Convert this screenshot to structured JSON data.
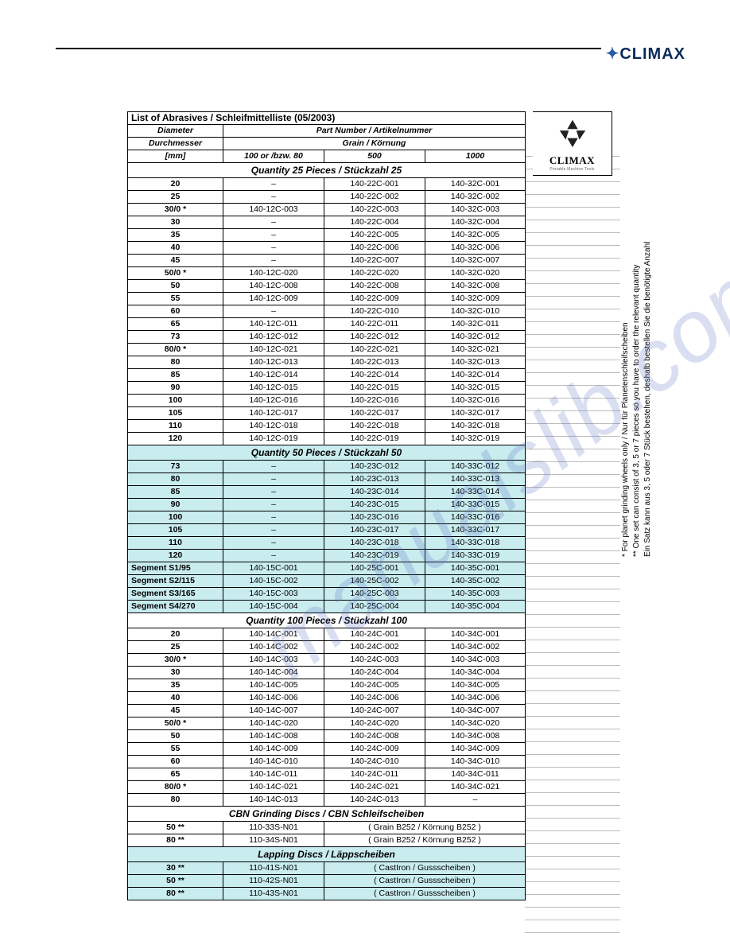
{
  "brand": "CLIMAX",
  "watermark": "manualslib.com",
  "title": "List of Abrasives  / Schleifmittelliste  (05/2003)",
  "header": {
    "diameter_en": "Diameter",
    "partnum": "Part Number / Artikelnummer",
    "diameter_de": "Durchmesser",
    "grain": "Grain / Körnung",
    "mm": "[mm]",
    "col1": "100 or /bzw. 80",
    "col2": "500",
    "col3": "1000"
  },
  "logo": {
    "text": "CLIMAX",
    "sub": "Portable Machine Tools"
  },
  "sections": [
    {
      "title": "Quantity 25 Pieces /   Stückzahl 25",
      "bg": false,
      "rows": [
        {
          "d": "20",
          "c1": "–",
          "c2": "140-22C-001",
          "c3": "140-32C-001"
        },
        {
          "d": "25",
          "c1": "–",
          "c2": "140-22C-002",
          "c3": "140-32C-002"
        },
        {
          "d": "30/0 *",
          "c1": "140-12C-003",
          "c2": "140-22C-003",
          "c3": "140-32C-003"
        },
        {
          "d": "30",
          "c1": "–",
          "c2": "140-22C-004",
          "c3": "140-32C-004"
        },
        {
          "d": "35",
          "c1": "–",
          "c2": "140-22C-005",
          "c3": "140-32C-005"
        },
        {
          "d": "40",
          "c1": "–",
          "c2": "140-22C-006",
          "c3": "140-32C-006"
        },
        {
          "d": "45",
          "c1": "–",
          "c2": "140-22C-007",
          "c3": "140-32C-007"
        },
        {
          "d": "50/0 *",
          "c1": "140-12C-020",
          "c2": "140-22C-020",
          "c3": "140-32C-020"
        },
        {
          "d": "50",
          "c1": "140-12C-008",
          "c2": "140-22C-008",
          "c3": "140-32C-008"
        },
        {
          "d": "55",
          "c1": "140-12C-009",
          "c2": "140-22C-009",
          "c3": "140-32C-009"
        },
        {
          "d": "60",
          "c1": "–",
          "c2": "140-22C-010",
          "c3": "140-32C-010"
        },
        {
          "d": "65",
          "c1": "140-12C-011",
          "c2": "140-22C-011",
          "c3": "140-32C-011"
        },
        {
          "d": "73",
          "c1": "140-12C-012",
          "c2": "140-22C-012",
          "c3": "140-32C-012"
        },
        {
          "d": "80/0 *",
          "c1": "140-12C-021",
          "c2": "140-22C-021",
          "c3": "140-32C-021"
        },
        {
          "d": "80",
          "c1": "140-12C-013",
          "c2": "140-22C-013",
          "c3": "140-32C-013"
        },
        {
          "d": "85",
          "c1": "140-12C-014",
          "c2": "140-22C-014",
          "c3": "140-32C-014"
        },
        {
          "d": "90",
          "c1": "140-12C-015",
          "c2": "140-22C-015",
          "c3": "140-32C-015"
        },
        {
          "d": "100",
          "c1": "140-12C-016",
          "c2": "140-22C-016",
          "c3": "140-32C-016"
        },
        {
          "d": "105",
          "c1": "140-12C-017",
          "c2": "140-22C-017",
          "c3": "140-32C-017"
        },
        {
          "d": "110",
          "c1": "140-12C-018",
          "c2": "140-22C-018",
          "c3": "140-32C-018"
        },
        {
          "d": "120",
          "c1": "140-12C-019",
          "c2": "140-22C-019",
          "c3": "140-32C-019"
        }
      ]
    },
    {
      "title": "Quantity 50 Pieces /   Stückzahl 50",
      "bg": true,
      "rows": [
        {
          "d": "73",
          "c1": "–",
          "c2": "140-23C-012",
          "c3": "140-33C-012"
        },
        {
          "d": "80",
          "c1": "–",
          "c2": "140-23C-013",
          "c3": "140-33C-013"
        },
        {
          "d": "85",
          "c1": "–",
          "c2": "140-23C-014",
          "c3": "140-33C-014"
        },
        {
          "d": "90",
          "c1": "–",
          "c2": "140-23C-015",
          "c3": "140-33C-015"
        },
        {
          "d": "100",
          "c1": "–",
          "c2": "140-23C-016",
          "c3": "140-33C-016"
        },
        {
          "d": "105",
          "c1": "–",
          "c2": "140-23C-017",
          "c3": "140-33C-017"
        },
        {
          "d": "110",
          "c1": "–",
          "c2": "140-23C-018",
          "c3": "140-33C-018"
        },
        {
          "d": "120",
          "c1": "–",
          "c2": "140-23C-019",
          "c3": "140-33C-019"
        },
        {
          "d": "Segment S1/95",
          "left": true,
          "c1": "140-15C-001",
          "c2": "140-25C-001",
          "c3": "140-35C-001"
        },
        {
          "d": "Segment S2/115",
          "left": true,
          "c1": "140-15C-002",
          "c2": "140-25C-002",
          "c3": "140-35C-002"
        },
        {
          "d": "Segment S3/165",
          "left": true,
          "c1": "140-15C-003",
          "c2": "140-25C-003",
          "c3": "140-35C-003"
        },
        {
          "d": "Segment S4/270",
          "left": true,
          "c1": "140-15C-004",
          "c2": "140-25C-004",
          "c3": "140-35C-004"
        }
      ]
    },
    {
      "title": "Quantity 100 Pieces /   Stückzahl 100",
      "bg": false,
      "rows": [
        {
          "d": "20",
          "c1": "140-14C-001",
          "c2": "140-24C-001",
          "c3": "140-34C-001"
        },
        {
          "d": "25",
          "c1": "140-14C-002",
          "c2": "140-24C-002",
          "c3": "140-34C-002"
        },
        {
          "d": "30/0 *",
          "c1": "140-14C-003",
          "c2": "140-24C-003",
          "c3": "140-34C-003"
        },
        {
          "d": "30",
          "c1": "140-14C-004",
          "c2": "140-24C-004",
          "c3": "140-34C-004"
        },
        {
          "d": "35",
          "c1": "140-14C-005",
          "c2": "140-24C-005",
          "c3": "140-34C-005"
        },
        {
          "d": "40",
          "c1": "140-14C-006",
          "c2": "140-24C-006",
          "c3": "140-34C-006"
        },
        {
          "d": "45",
          "c1": "140-14C-007",
          "c2": "140-24C-007",
          "c3": "140-34C-007"
        },
        {
          "d": "50/0 *",
          "c1": "140-14C-020",
          "c2": "140-24C-020",
          "c3": "140-34C-020"
        },
        {
          "d": "50",
          "c1": "140-14C-008",
          "c2": "140-24C-008",
          "c3": "140-34C-008"
        },
        {
          "d": "55",
          "c1": "140-14C-009",
          "c2": "140-24C-009",
          "c3": "140-34C-009"
        },
        {
          "d": "60",
          "c1": "140-14C-010",
          "c2": "140-24C-010",
          "c3": "140-34C-010"
        },
        {
          "d": "65",
          "c1": "140-14C-011",
          "c2": "140-24C-011",
          "c3": "140-34C-011"
        },
        {
          "d": "80/0 *",
          "c1": "140-14C-021",
          "c2": "140-24C-021",
          "c3": "140-34C-021"
        },
        {
          "d": "80",
          "c1": "140-14C-013",
          "c2": "140-24C-013",
          "c3": "–"
        }
      ]
    },
    {
      "title": "CBN Grinding Discs  /  CBN Schleifscheiben",
      "bg": false,
      "span2": true,
      "rows": [
        {
          "d": "50 **",
          "c1": "110-33S-N01",
          "note": "( Grain B252 / Körnung B252 )"
        },
        {
          "d": "80 **",
          "c1": "110-34S-N01",
          "note": "( Grain B252 / Körnung B252 )"
        }
      ]
    },
    {
      "title": "Lapping Discs  /  Läppscheiben",
      "bg": true,
      "span2": true,
      "rows": [
        {
          "d": "30 **",
          "c1": "110-41S-N01",
          "note": "( CastIron / Gussscheiben )"
        },
        {
          "d": "50 **",
          "c1": "110-42S-N01",
          "note": "( CastIron / Gussscheiben )"
        },
        {
          "d": "80 **",
          "c1": "110-43S-N01",
          "note": "( CastIron / Gussscheiben )"
        }
      ]
    }
  ],
  "footnotes": [
    "*  For planet grinding wheels only / Nur für Planetenschleifscheiben",
    "** One set can consist of 3, 5 or 7 pieces so you have to order the relevant quantity",
    "    Ein Satz kann aus 3, 5 oder 7 Stück bestehen, deshalb bestellen Sie die benötigte Anzahl"
  ]
}
